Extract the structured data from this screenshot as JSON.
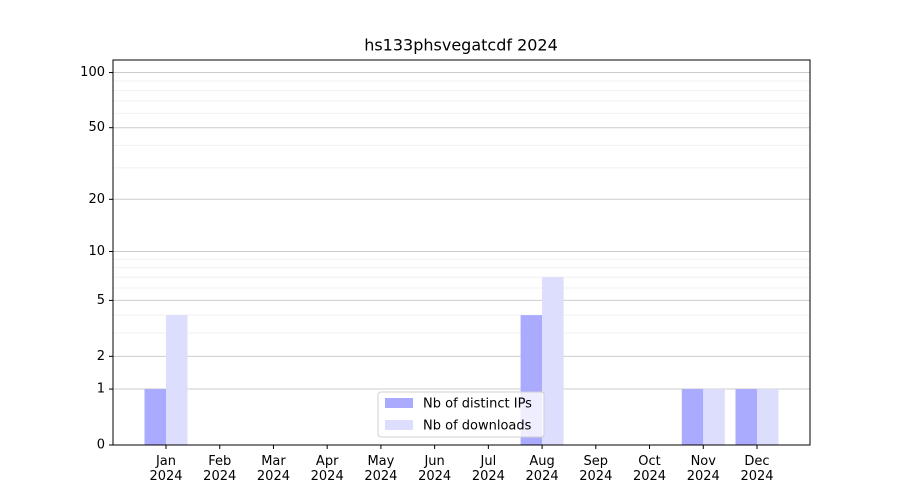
{
  "chart_data": {
    "type": "bar",
    "title": "hs133phsvegatcdf 2024",
    "categories": [
      "Jan\n2024",
      "Feb\n2024",
      "Mar\n2024",
      "Apr\n2024",
      "May\n2024",
      "Jun\n2024",
      "Jul\n2024",
      "Aug\n2024",
      "Sep\n2024",
      "Oct\n2024",
      "Nov\n2024",
      "Dec\n2024"
    ],
    "series": [
      {
        "name": "Nb of distinct IPs",
        "color": "#aaaaff",
        "values": [
          1,
          0,
          0,
          0,
          0,
          0,
          0,
          4,
          0,
          0,
          1,
          1
        ]
      },
      {
        "name": "Nb of downloads",
        "color": "#ddddfe",
        "values": [
          4,
          0,
          0,
          0,
          0,
          0,
          0,
          7,
          0,
          0,
          1,
          1
        ]
      }
    ],
    "yscale": "log1p",
    "ylim": [
      0,
      117
    ],
    "yticks": [
      0,
      1,
      2,
      5,
      10,
      20,
      50,
      100
    ],
    "minor_yticks": [
      3,
      4,
      6,
      7,
      8,
      9,
      30,
      40,
      60,
      70,
      80,
      90
    ],
    "grid": true,
    "legend": "lower center"
  }
}
